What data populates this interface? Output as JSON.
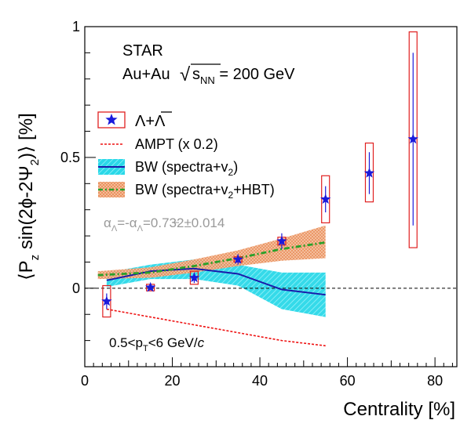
{
  "chart_data": {
    "type": "scatter",
    "title": "",
    "xlabel": "Centrality [%]",
    "ylabel": "⟨P_z sin(2φ−2Ψ_2)⟩ [%]",
    "ylabel_parts": {
      "open": "⟨P",
      "z": "z",
      "mid": " sin(2ϕ-2Ψ",
      "two": "2",
      "close": ")⟩ [%]"
    },
    "xlim": [
      0,
      85
    ],
    "ylim": [
      -0.3,
      1.0
    ],
    "x_ticks": [
      0,
      20,
      40,
      60,
      80
    ],
    "y_ticks": [
      {
        "value": 0,
        "label": "0"
      },
      {
        "value": 0.5,
        "label": "0.5"
      },
      {
        "value": 1,
        "label": "1"
      }
    ],
    "reference_line": 0,
    "annotations": {
      "experiment": "STAR",
      "system_prefix": "Au+Au",
      "sqrt": "√",
      "s": "s",
      "nn": "NN",
      "energy": " = 200 GeV",
      "alpha_line": "α_Λ=-α_Λ̄=0.732±0.014",
      "alpha_parts": {
        "a1": "α",
        "s1": "Λ",
        "eq": "=-α",
        "s2": "Λ",
        "val": "=0.732±0.014"
      },
      "kin_parts": {
        "lo": "0.5<p",
        "T": "T",
        "hi": "<6 GeV/",
        "c": "c"
      }
    },
    "legend": [
      {
        "key": "data",
        "label": "Λ+Λ̄",
        "label_text": "Λ+Λ"
      },
      {
        "key": "ampt",
        "label": "AMPT (x 0.2)"
      },
      {
        "key": "bw",
        "label_prefix": "BW (spectra+v",
        "sub": "2",
        "label_suffix": ")"
      },
      {
        "key": "bwhbt",
        "label_prefix": "BW (spectra+v",
        "sub": "2",
        "label_suffix": "+HBT)"
      }
    ],
    "series": [
      {
        "key": "data",
        "marker": "star",
        "color": "#1a1adb",
        "points": [
          {
            "x": 5,
            "y": -0.05,
            "stat": 0.03,
            "sys_lo": -0.11,
            "sys_hi": 0.01
          },
          {
            "x": 15,
            "y": 0.003,
            "stat": 0.01,
            "sys_lo": -0.01,
            "sys_hi": 0.015
          },
          {
            "x": 25,
            "y": 0.04,
            "stat": 0.02,
            "sys_lo": 0.015,
            "sys_hi": 0.065
          },
          {
            "x": 35,
            "y": 0.11,
            "stat": 0.02,
            "sys_lo": 0.1,
            "sys_hi": 0.12
          },
          {
            "x": 45,
            "y": 0.18,
            "stat": 0.03,
            "sys_lo": 0.165,
            "sys_hi": 0.195
          },
          {
            "x": 55,
            "y": 0.34,
            "stat": 0.05,
            "sys_lo": 0.25,
            "sys_hi": 0.43
          },
          {
            "x": 65,
            "y": 0.44,
            "stat": 0.08,
            "sys_lo": 0.33,
            "sys_hi": 0.555
          },
          {
            "x": 75,
            "y": 0.57,
            "stat": 0.33,
            "sys_lo": 0.155,
            "sys_hi": 0.98
          }
        ]
      },
      {
        "key": "ampt",
        "color": "#ee1111",
        "x": [
          5,
          15,
          25,
          35,
          45,
          55
        ],
        "y": [
          -0.08,
          -0.11,
          -0.14,
          -0.17,
          -0.2,
          -0.22
        ]
      },
      {
        "key": "bw",
        "color": "#1a1aaa",
        "band_color": "#2ad8e8",
        "x": [
          5,
          15,
          25,
          35,
          45,
          55
        ],
        "y": [
          0.03,
          0.065,
          0.075,
          0.055,
          -0.005,
          -0.025
        ],
        "lo": [
          0.005,
          0.035,
          0.035,
          0.01,
          -0.08,
          -0.11
        ],
        "hi": [
          0.06,
          0.09,
          0.11,
          0.09,
          0.06,
          0.06
        ]
      },
      {
        "key": "bwhbt",
        "color": "#2aa02a",
        "band_color": "#f0a878",
        "x": [
          3,
          15,
          25,
          35,
          45,
          55
        ],
        "y": [
          0.05,
          0.06,
          0.085,
          0.115,
          0.15,
          0.175
        ],
        "lo": [
          0.035,
          0.04,
          0.06,
          0.085,
          0.105,
          0.115
        ],
        "hi": [
          0.065,
          0.08,
          0.11,
          0.145,
          0.19,
          0.24
        ]
      }
    ]
  }
}
